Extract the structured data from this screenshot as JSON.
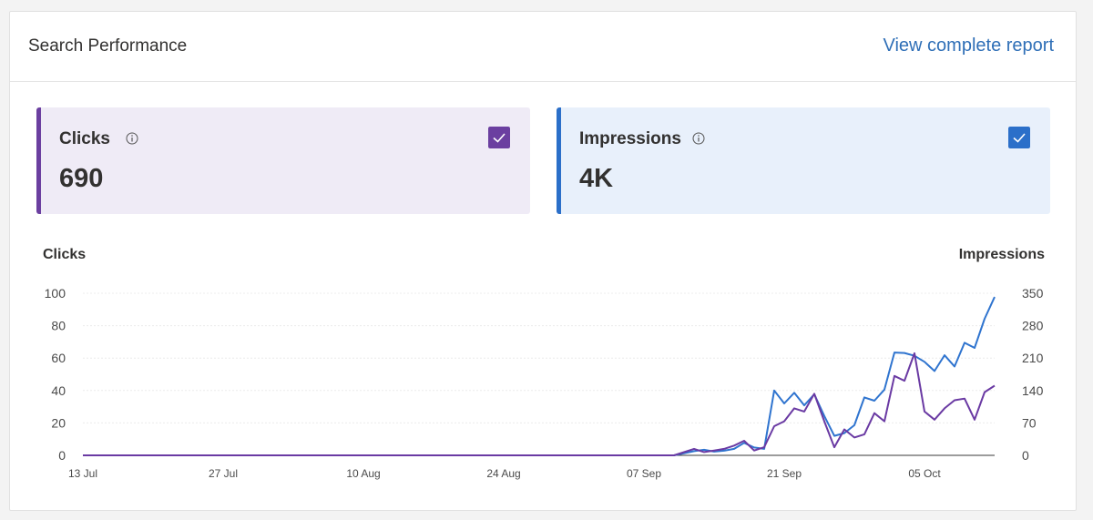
{
  "card": {
    "title": "Search Performance",
    "report_link": "View complete report"
  },
  "metrics": {
    "clicks": {
      "label": "Clicks",
      "value": "690",
      "checked": true,
      "color": "#6b3fa0"
    },
    "impressions": {
      "label": "Impressions",
      "value": "4K",
      "checked": true,
      "color": "#2b6fc9"
    }
  },
  "chart_data": {
    "type": "line",
    "y_left_label": "Clicks",
    "y_right_label": "Impressions",
    "y_left_ticks": [
      "100",
      "80",
      "60",
      "40",
      "20",
      "0"
    ],
    "y_right_ticks": [
      "350",
      "280",
      "210",
      "140",
      "70",
      "0"
    ],
    "ylim_left": [
      0,
      100
    ],
    "ylim_right": [
      0,
      350
    ],
    "x_tick_labels": [
      "13 Jul",
      "27 Jul",
      "10 Aug",
      "24 Aug",
      "07 Sep",
      "21 Sep",
      "05 Oct"
    ],
    "x_range_days": [
      0,
      91
    ],
    "grid": true,
    "series": [
      {
        "name": "Impressions",
        "axis": "right",
        "color": "#2f74cf",
        "points": [
          [
            0,
            0
          ],
          [
            59,
            0
          ],
          [
            61,
            9
          ],
          [
            62,
            12
          ],
          [
            63,
            8
          ],
          [
            64,
            10
          ],
          [
            65,
            14
          ],
          [
            66,
            27
          ],
          [
            67,
            17
          ],
          [
            68,
            14
          ],
          [
            69,
            140
          ],
          [
            70,
            112
          ],
          [
            71,
            135
          ],
          [
            72,
            108
          ],
          [
            73,
            132
          ],
          [
            74,
            85
          ],
          [
            75,
            42
          ],
          [
            76,
            48
          ],
          [
            77,
            65
          ],
          [
            78,
            125
          ],
          [
            79,
            118
          ],
          [
            80,
            142
          ],
          [
            81,
            222
          ],
          [
            82,
            221
          ],
          [
            83,
            215
          ],
          [
            84,
            202
          ],
          [
            85,
            182
          ],
          [
            86,
            216
          ],
          [
            87,
            192
          ],
          [
            88,
            243
          ],
          [
            89,
            232
          ],
          [
            90,
            295
          ],
          [
            91,
            342
          ]
        ]
      },
      {
        "name": "Clicks",
        "axis": "left",
        "color": "#6a3aa3",
        "points": [
          [
            0,
            0
          ],
          [
            59,
            0
          ],
          [
            61,
            4
          ],
          [
            62,
            2
          ],
          [
            63,
            3
          ],
          [
            64,
            4
          ],
          [
            65,
            6
          ],
          [
            66,
            9
          ],
          [
            67,
            3
          ],
          [
            68,
            5
          ],
          [
            69,
            18
          ],
          [
            70,
            21
          ],
          [
            71,
            29
          ],
          [
            72,
            27
          ],
          [
            73,
            38
          ],
          [
            74,
            21
          ],
          [
            75,
            5
          ],
          [
            76,
            16
          ],
          [
            77,
            11
          ],
          [
            78,
            13
          ],
          [
            79,
            26
          ],
          [
            80,
            21
          ],
          [
            81,
            49
          ],
          [
            82,
            46
          ],
          [
            83,
            63
          ],
          [
            84,
            27
          ],
          [
            85,
            22
          ],
          [
            86,
            29
          ],
          [
            87,
            34
          ],
          [
            88,
            35
          ],
          [
            89,
            22
          ],
          [
            90,
            39
          ],
          [
            91,
            43
          ]
        ]
      }
    ]
  }
}
